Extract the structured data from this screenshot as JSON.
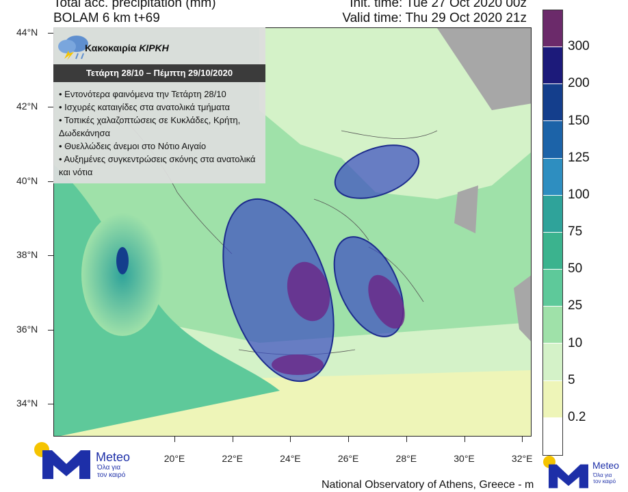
{
  "header": {
    "line1_left": "Total acc. precipitation (mm)",
    "line2_left": "BOLAM 6 km t+69",
    "line1_right": "Init. time: Tue 27 Oct 2020 00z",
    "line2_right": "Valid time: Thu 29 Oct 2020 21z"
  },
  "info_box": {
    "title_prefix": "Κακοκαιρία ",
    "title_name": "ΚΙΡΚΗ",
    "period": "Τετάρτη 28/10 – Πέμπτη 29/10/2020",
    "bullets": [
      "• Εντονότερα φαινόμενα την Τετάρτη 28/10",
      "• Ισχυρές καταιγίδες στα ανατολικά τμήματα",
      "• Τοπικές χαλαζοπτώσεις σε Κυκλάδες, Κρήτη, Δωδεκάνησα",
      "• Θυελλώδεις άνεμοι στο Νότιο Αιγαίο",
      "• Αυξημένες συγκεντρώσεις σκόνης στα ανατολικά και νότια"
    ],
    "icon": "storm-cloud-icon"
  },
  "axes": {
    "lat_labels": [
      "44°N",
      "42°N",
      "40°N",
      "38°N",
      "36°N",
      "34°N"
    ],
    "lon_labels": [
      "20°E",
      "22°E",
      "24°E",
      "26°E",
      "28°E",
      "30°E",
      "32°E"
    ]
  },
  "legend": {
    "labels": [
      "300",
      "200",
      "150",
      "125",
      "100",
      "75",
      "50",
      "25",
      "10",
      "5",
      "0.2"
    ],
    "colors": [
      "#6b2a6a",
      "#1c1a7a",
      "#143e8c",
      "#1c63a8",
      "#2e8ec0",
      "#2fa39a",
      "#3bb38e",
      "#5ec99a",
      "#9fe1a9",
      "#d4f2c8",
      "#eef5b8",
      "#ffffff"
    ]
  },
  "logo": {
    "word": "Meteo",
    "tagline_1": "Όλα για",
    "tagline_2": "τον καιρό",
    "colors": {
      "m": "#1d2fa8",
      "sun": "#f5c400"
    }
  },
  "credit": "National Observatory of Athens, Greece - m",
  "map_colors": {
    "sea": "#ffffff",
    "land_gray": "#a7a7a7",
    "ellipse_fill": "#3d4fc0",
    "ellipse_stroke": "#1c2b8c",
    "inner_ellipse": "#6a2a8a"
  }
}
